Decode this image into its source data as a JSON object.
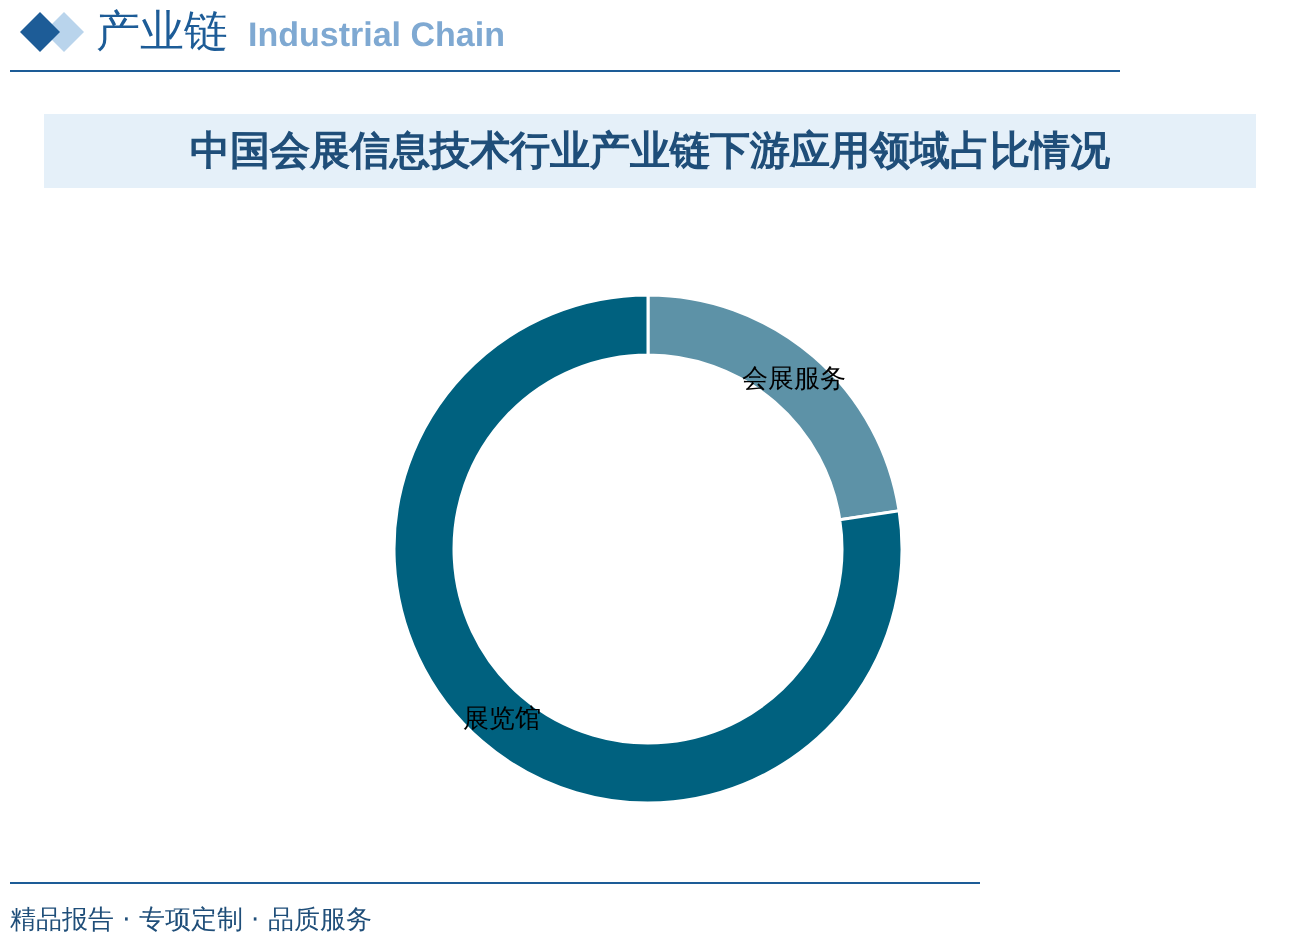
{
  "chart_data": {
    "type": "donut",
    "title": "中国会展信息技术行业产业链下游应用领域占比情况",
    "categories": [
      "会展服务",
      "展览馆"
    ],
    "values": [
      22.6,
      77.4
    ],
    "colors": [
      "#5d92a7",
      "#00617f"
    ],
    "annotations": [
      "产业链",
      "Industrial Chain",
      "精品报告 · 专项定制 · 品质服务"
    ]
  }
}
